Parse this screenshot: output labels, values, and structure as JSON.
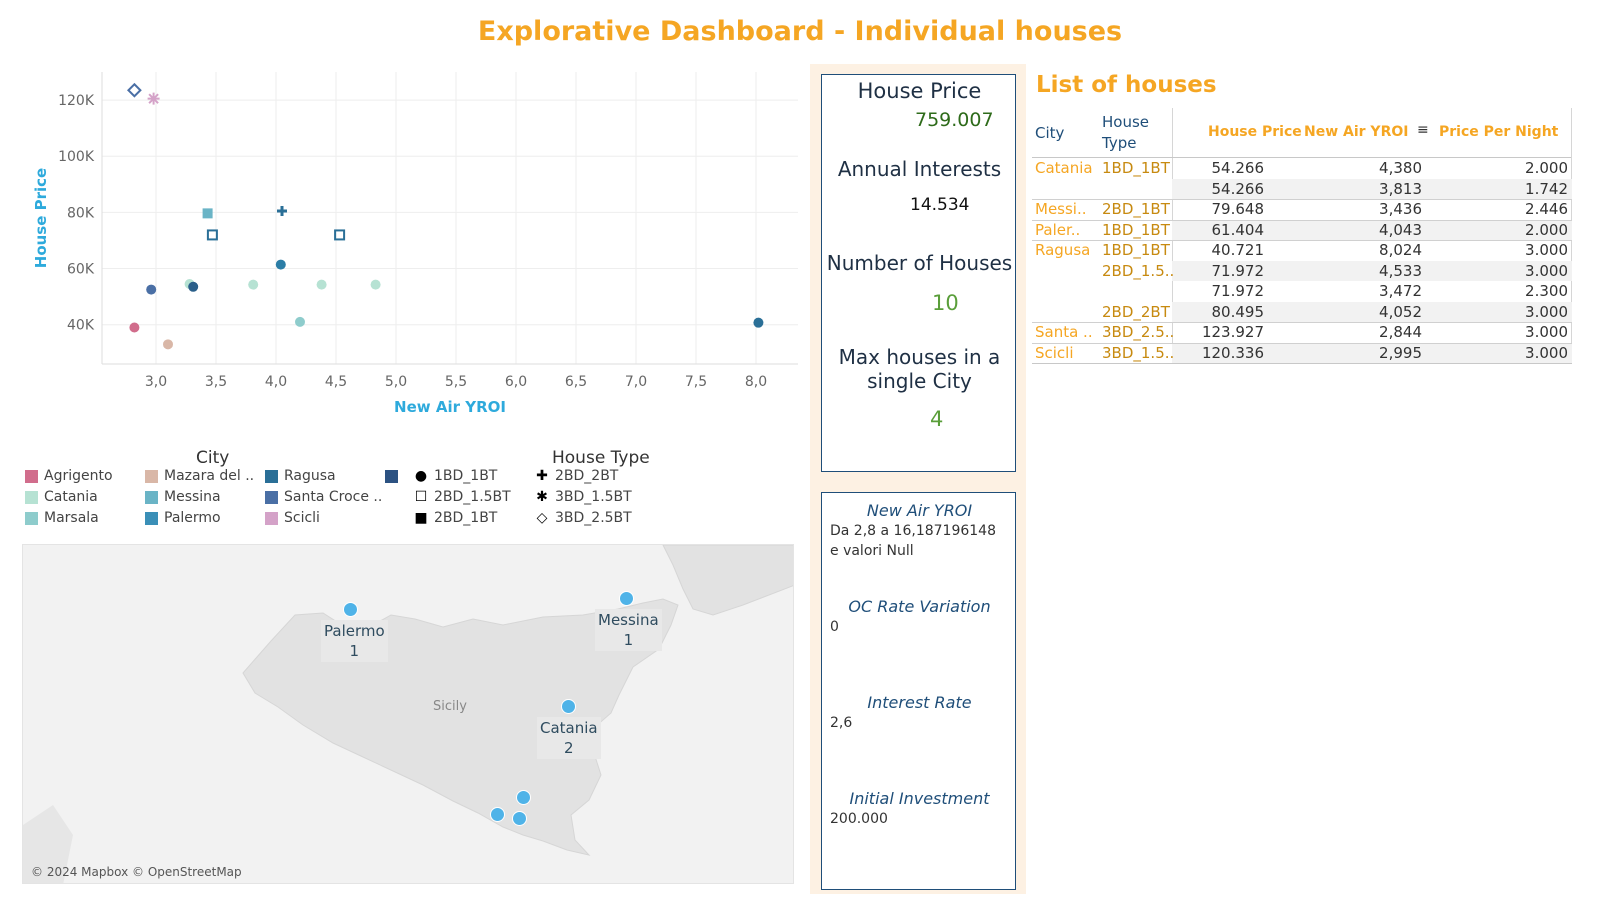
{
  "title": "Explorative Dashboard - Individual houses",
  "colors": {
    "accent": "#f5a623",
    "axis_title": "#2eaadc",
    "kpi_green": "#5a9e3a",
    "kpi_dark_green": "#2e6b1a",
    "border": "#1f4e79",
    "map_dot": "#4fb3e8"
  },
  "chart_data": {
    "type": "scatter",
    "xlabel": "New Air YROI",
    "ylabel": "House Price",
    "xlim": [
      2.55,
      8.35
    ],
    "ylim": [
      26000,
      130000
    ],
    "x_ticks": [
      "3,0",
      "3,5",
      "4,0",
      "4,5",
      "5,0",
      "5,5",
      "6,0",
      "6,5",
      "7,0",
      "7,5",
      "8,0"
    ],
    "x_tick_values": [
      3.0,
      3.5,
      4.0,
      4.5,
      5.0,
      5.5,
      6.0,
      6.5,
      7.0,
      7.5,
      8.0
    ],
    "y_ticks": [
      "40K",
      "60K",
      "80K",
      "100K",
      "120K"
    ],
    "y_tick_values": [
      40000,
      60000,
      80000,
      100000,
      120000
    ],
    "points": [
      {
        "x": 2.82,
        "y": 123500,
        "city": "Santa Croce ..",
        "color": "#4a6fa5",
        "shape": "diamond"
      },
      {
        "x": 2.98,
        "y": 120500,
        "city": "Scicli",
        "color": "#d4a2c8",
        "shape": "asterisk"
      },
      {
        "x": 2.82,
        "y": 39000,
        "city": "Agrigento",
        "color": "#d16d8c",
        "shape": "circle"
      },
      {
        "x": 2.96,
        "y": 52500,
        "city": "Santa Croce ..",
        "color": "#4a6fa5",
        "shape": "circle"
      },
      {
        "x": 3.1,
        "y": 33000,
        "city": "Mazara del ..",
        "color": "#d9b7a7",
        "shape": "circle"
      },
      {
        "x": 3.28,
        "y": 54500,
        "city": "Catania",
        "color": "#b6e2d3",
        "shape": "circle"
      },
      {
        "x": 3.31,
        "y": 53500,
        "city": "Ragusa",
        "color": "#2a5f8a",
        "shape": "circle"
      },
      {
        "x": 3.43,
        "y": 79648,
        "city": "Messina",
        "color": "#6ab4c6",
        "shape": "square"
      },
      {
        "x": 3.47,
        "y": 71972,
        "city": "Ragusa",
        "color": "#2a6f97",
        "shape": "square-open"
      },
      {
        "x": 3.81,
        "y": 54266,
        "city": "Catania",
        "color": "#b6e2d3",
        "shape": "circle"
      },
      {
        "x": 4.04,
        "y": 61404,
        "city": "Palermo",
        "color": "#2b7da6",
        "shape": "circle"
      },
      {
        "x": 4.05,
        "y": 80495,
        "city": "Ragusa",
        "color": "#2a6f97",
        "shape": "plus"
      },
      {
        "x": 4.2,
        "y": 41000,
        "city": "Marsala",
        "color": "#8ecccc",
        "shape": "circle"
      },
      {
        "x": 4.38,
        "y": 54266,
        "city": "Catania",
        "color": "#b6e2d3",
        "shape": "circle"
      },
      {
        "x": 4.53,
        "y": 71972,
        "city": "Ragusa",
        "color": "#2a6f97",
        "shape": "square-open"
      },
      {
        "x": 4.83,
        "y": 54266,
        "city": "Catania",
        "color": "#b6e2d3",
        "shape": "circle"
      },
      {
        "x": 8.02,
        "y": 40721,
        "city": "Ragusa",
        "color": "#2a6f97",
        "shape": "circle"
      }
    ]
  },
  "legend": {
    "city_title": "City",
    "house_type_title": "House Type",
    "cities": [
      {
        "name": "Agrigento",
        "color": "#d16d8c"
      },
      {
        "name": "Catania",
        "color": "#b6e2d3"
      },
      {
        "name": "Marsala",
        "color": "#8ecccc"
      },
      {
        "name": "Mazara del ..",
        "color": "#d9b7a7"
      },
      {
        "name": "Messina",
        "color": "#6ab4c6"
      },
      {
        "name": "Palermo",
        "color": "#3a8fb7"
      },
      {
        "name": "Ragusa",
        "color": "#2a6f97"
      },
      {
        "name": "Santa Croce ..",
        "color": "#4a6fa5"
      },
      {
        "name": "Scicli",
        "color": "#d4a2c8"
      },
      {
        "name": "",
        "color": "#2c5282"
      }
    ],
    "house_types": [
      {
        "name": "1BD_1BT",
        "symbol": "●"
      },
      {
        "name": "2BD_1.5BT",
        "symbol": "☐"
      },
      {
        "name": "2BD_1BT",
        "symbol": "■"
      },
      {
        "name": "2BD_2BT",
        "symbol": "✚"
      },
      {
        "name": "3BD_1.5BT",
        "symbol": "✱"
      },
      {
        "name": "3BD_2.5BT",
        "symbol": "◇"
      }
    ]
  },
  "map": {
    "credit": "© 2024 Mapbox © OpenStreetMap",
    "region_label": "Sicily",
    "cities": [
      {
        "name": "Palermo",
        "count": "1"
      },
      {
        "name": "Messina",
        "count": "1"
      },
      {
        "name": "Catania",
        "count": "2"
      }
    ]
  },
  "kpis": {
    "house_price_label": "House Price",
    "house_price_value": "759.007",
    "annual_interests_label": "Annual Interests",
    "annual_interests_value": "14.534",
    "num_houses_label": "Number of Houses",
    "num_houses_value": "10",
    "max_houses_label": "Max houses in a single City",
    "max_houses_value": "4"
  },
  "parameters": {
    "yroi_label": "New Air YROI",
    "yroi_value_1": "Da 2,8 a 16,187196148",
    "yroi_value_2": "e valori Null",
    "oc_label": "OC Rate Variation",
    "oc_value": "0",
    "interest_label": "Interest Rate",
    "interest_value": "2,6",
    "investment_label": "Initial Investment",
    "investment_value": "200.000"
  },
  "table": {
    "title": "List of houses",
    "headers": {
      "city": "City",
      "house_type": "House Type",
      "house_price": "House Price",
      "yroi": "New Air YROI",
      "price_per_night": "Price Per Night"
    },
    "rows": [
      {
        "city": "Catania",
        "type": "1BD_1BT",
        "price": "54.266",
        "yroi": "4,380",
        "ppn": "2.000"
      },
      {
        "city": "",
        "type": "",
        "price": "54.266",
        "yroi": "3,813",
        "ppn": "1.742"
      },
      {
        "city": "Messi..",
        "type": "2BD_1BT",
        "price": "79.648",
        "yroi": "3,436",
        "ppn": "2.446"
      },
      {
        "city": "Paler..",
        "type": "1BD_1BT",
        "price": "61.404",
        "yroi": "4,043",
        "ppn": "2.000"
      },
      {
        "city": "Ragusa",
        "type": "1BD_1BT",
        "price": "40.721",
        "yroi": "8,024",
        "ppn": "3.000"
      },
      {
        "city": "",
        "type": "2BD_1.5..",
        "price": "71.972",
        "yroi": "4,533",
        "ppn": "3.000"
      },
      {
        "city": "",
        "type": "",
        "price": "71.972",
        "yroi": "3,472",
        "ppn": "2.300"
      },
      {
        "city": "",
        "type": "2BD_2BT",
        "price": "80.495",
        "yroi": "4,052",
        "ppn": "3.000"
      },
      {
        "city": "Santa ..",
        "type": "3BD_2.5..",
        "price": "123.927",
        "yroi": "2,844",
        "ppn": "3.000"
      },
      {
        "city": "Scicli",
        "type": "3BD_1.5..",
        "price": "120.336",
        "yroi": "2,995",
        "ppn": "3.000"
      }
    ]
  }
}
